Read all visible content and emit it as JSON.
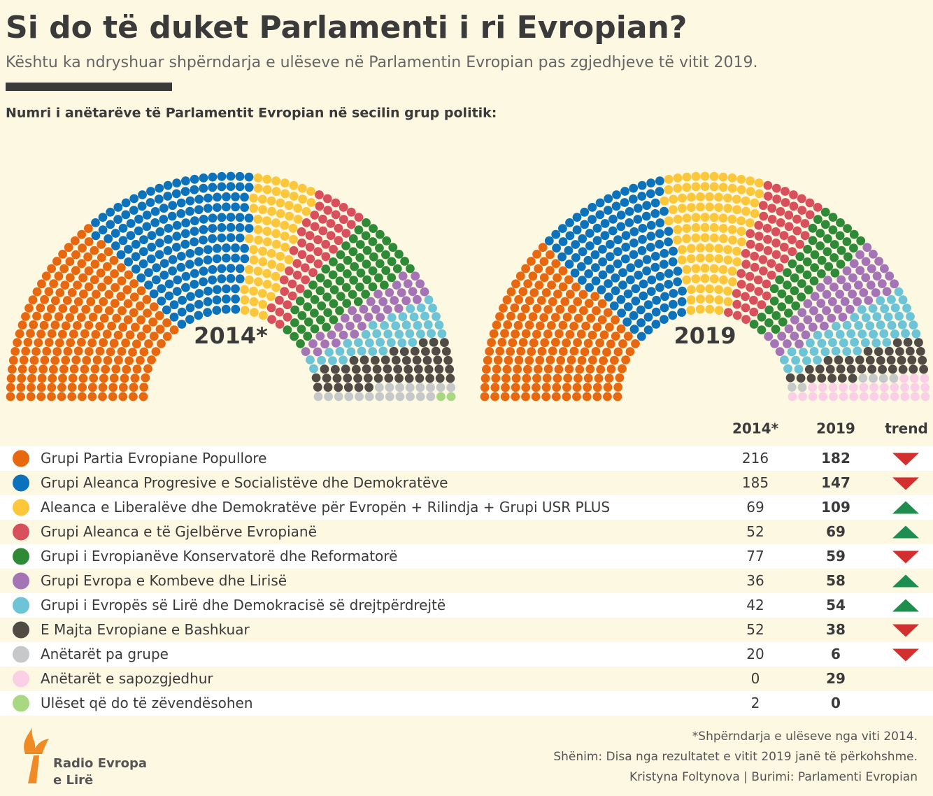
{
  "title": "Si do të duket Parlamenti i ri Evropian?",
  "subtitle": "Kështu ka ndryshuar shpërndarja e ulëseve në Parlamentin Evropian pas zgjedhjeve të vitit 2019.",
  "chart_data": {
    "type": "parliament",
    "title": "Numri i anëtarëve të Parlamentit Evropian në secilin grup politik:",
    "categories": [
      "2014*",
      "2019"
    ],
    "trend_label": "trend",
    "series": [
      {
        "name": "Grupi Partia Evropiane Popullore",
        "color": "#e8680f",
        "values": [
          216,
          182
        ],
        "trend": "down"
      },
      {
        "name": "Grupi Aleanca Progresive e Socialistëve dhe Demokratëve",
        "color": "#0b72bb",
        "values": [
          185,
          147
        ],
        "trend": "down"
      },
      {
        "name": "Aleanca e Liberalëve dhe Demokratëve për Evropën + Rilindja + Grupi USR PLUS",
        "color": "#fcc73a",
        "values": [
          69,
          109
        ],
        "trend": "up"
      },
      {
        "name": "Grupi Aleanca e të Gjelbërve Evropianë",
        "color": "#d9505d",
        "values": [
          52,
          69
        ],
        "trend": "up"
      },
      {
        "name": "Grupi i Evropianëve Konservatorë dhe Reformatorë",
        "color": "#2f8a38",
        "values": [
          77,
          59
        ],
        "trend": "down"
      },
      {
        "name": "Grupi Evropa e Kombeve dhe Lirisë",
        "color": "#a574b6",
        "values": [
          36,
          58
        ],
        "trend": "up"
      },
      {
        "name": "Grupi i Evropës së Lirë dhe Demokracisë së drejtpërdrejtë",
        "color": "#6cc4d6",
        "values": [
          42,
          54
        ],
        "trend": "up"
      },
      {
        "name": "E Majta Evropiane e Bashkuar",
        "color": "#514b45",
        "values": [
          52,
          38
        ],
        "trend": "down"
      },
      {
        "name": "Anëtarët pa grupe",
        "color": "#c6c8ca",
        "values": [
          20,
          6
        ],
        "trend": "down"
      },
      {
        "name": "Anëtarët e sapozgjedhur",
        "color": "#fbd0e6",
        "values": [
          0,
          29
        ]
      },
      {
        "name": "Ulëset që do të zëvendësohen",
        "color": "#a8d982",
        "values": [
          2,
          0
        ]
      }
    ]
  },
  "notes": [
    "*Shpërndarja e ulëseve nga viti 2014.",
    "Shënim: Disa nga rezultatet e vitit 2019 janë  të përkohshme.",
    "Kristyna Foltynova | Burimi: Parlamenti Evropian"
  ],
  "logo": [
    "Radio Evropa",
    "e Lirë"
  ]
}
